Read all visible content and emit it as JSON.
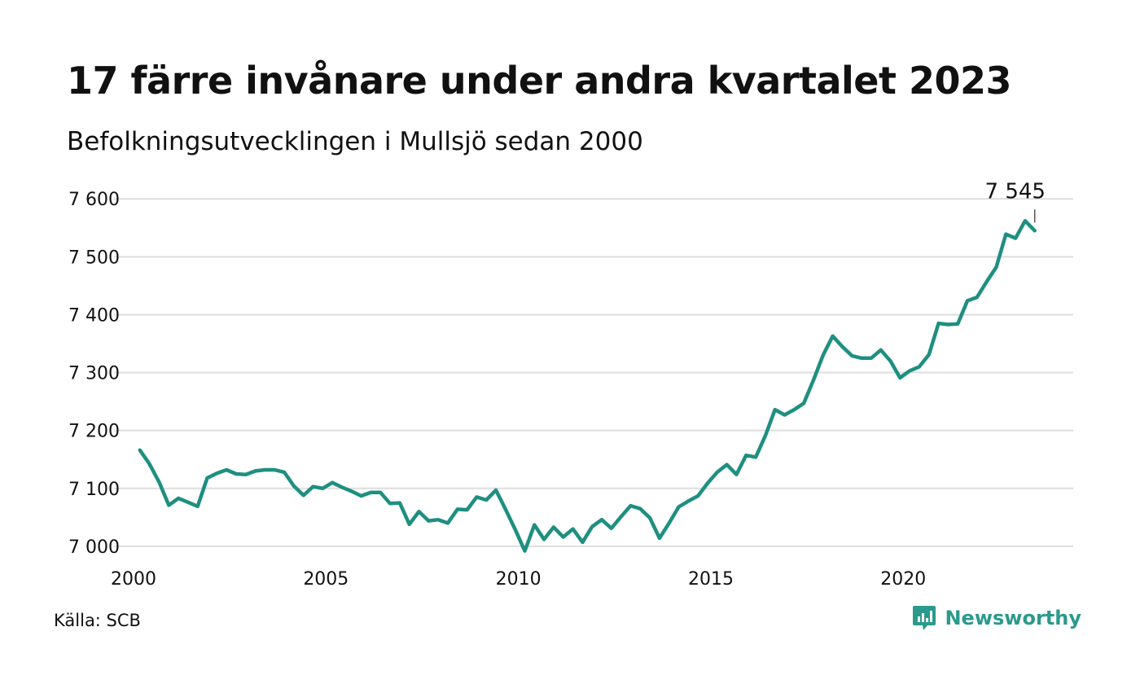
{
  "title": "17 färre invånare under andra kvartalet 2023",
  "subtitle": "Befolkningsutvecklingen i Mullsjö sedan 2000",
  "source": "Källa: SCB",
  "brand": {
    "name": "Newsworthy",
    "icon": "newsworthy-chart-bubble-icon",
    "color": "#2a9a8c"
  },
  "chart_data": {
    "type": "line",
    "title": "17 färre invånare under andra kvartalet 2023",
    "subtitle": "Befolkningsutvecklingen i Mullsjö sedan 2000",
    "xlabel": "",
    "ylabel": "",
    "xlim": [
      2000,
      2024.5
    ],
    "ylim": [
      6990,
      7620
    ],
    "grid": true,
    "line_color": "#1e8f80",
    "x_ticks": [
      2000,
      2005,
      2010,
      2015,
      2020
    ],
    "x_tick_labels": [
      "2000",
      "2005",
      "2010",
      "2015",
      "2020"
    ],
    "y_ticks": [
      7000,
      7100,
      7200,
      7300,
      7400,
      7500,
      7600
    ],
    "y_tick_labels": [
      "7 000",
      "7 100",
      "7 200",
      "7 300",
      "7 400",
      "7 500",
      "7 600"
    ],
    "annotation": {
      "label": "7 545",
      "x": 2023.5,
      "value": 7545
    },
    "series": [
      {
        "x": [
          2000.25,
          2000.5,
          2000.75,
          2001.0,
          2001.25,
          2001.5,
          2001.75,
          2002.0,
          2002.25,
          2002.5,
          2002.75,
          2003.0,
          2003.25,
          2003.5,
          2003.75,
          2004.0,
          2004.25,
          2004.5,
          2004.75,
          2005.0,
          2005.25,
          2005.5,
          2005.75,
          2006.0,
          2006.25,
          2006.5,
          2006.75,
          2007.0,
          2007.25,
          2007.5,
          2007.75,
          2008.0,
          2008.25,
          2008.5,
          2008.75,
          2009.0,
          2009.25,
          2009.5,
          2009.75,
          2010.0,
          2010.25,
          2010.5,
          2010.75,
          2011.0,
          2011.25,
          2011.5,
          2011.75,
          2012.0,
          2012.25,
          2012.5,
          2012.75,
          2013.0,
          2013.25,
          2013.5,
          2013.75,
          2014.0,
          2014.25,
          2014.5,
          2014.75,
          2015.0,
          2015.25,
          2015.5,
          2015.75,
          2016.0,
          2016.25,
          2016.5,
          2016.75,
          2017.0,
          2017.25,
          2017.5,
          2017.75,
          2018.0,
          2018.25,
          2018.5,
          2018.75,
          2019.0,
          2019.25,
          2019.5,
          2019.75,
          2020.0,
          2020.25,
          2020.5,
          2020.75,
          2021.0,
          2021.25,
          2021.5,
          2021.75,
          2022.0,
          2022.25,
          2022.5,
          2022.75,
          2023.0,
          2023.25,
          2023.5
        ],
        "values": [
          7166,
          7142,
          7111,
          7071,
          7083,
          7076,
          7069,
          7118,
          7126,
          7132,
          7125,
          7124,
          7130,
          7132,
          7132,
          7128,
          7104,
          7088,
          7103,
          7100,
          7110,
          7102,
          7095,
          7087,
          7093,
          7093,
          7074,
          7075,
          7038,
          7060,
          7044,
          7046,
          7040,
          7064,
          7063,
          7085,
          7080,
          7097,
          7064,
          7029,
          6992,
          7037,
          7012,
          7033,
          7016,
          7030,
          7007,
          7034,
          7046,
          7031,
          7051,
          7070,
          7065,
          7049,
          7014,
          7040,
          7068,
          7078,
          7087,
          7109,
          7128,
          7141,
          7124,
          7157,
          7154,
          7191,
          7236,
          7227,
          7236,
          7247,
          7287,
          7330,
          7363,
          7345,
          7329,
          7325,
          7325,
          7339,
          7320,
          7291,
          7303,
          7310,
          7331,
          7385,
          7383,
          7384,
          7424,
          7430,
          7457,
          7482,
          7539,
          7532,
          7562,
          7545
        ]
      }
    ]
  }
}
